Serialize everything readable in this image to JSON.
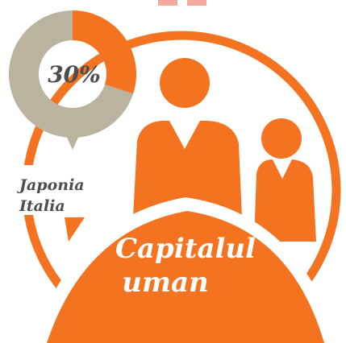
{
  "donut": {
    "value": 30,
    "label": "30%"
  },
  "legend": [
    "Japonia",
    "Italia"
  ],
  "title_lines": [
    "Capitalul",
    "uman"
  ]
}
